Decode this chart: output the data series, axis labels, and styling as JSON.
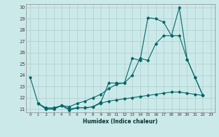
{
  "xlabel": "Humidex (Indice chaleur)",
  "background_color": "#cce9e9",
  "grid_color": "#aacccc",
  "line_color": "#006666",
  "xlim_min": -0.5,
  "xlim_max": 23.5,
  "ylim_min": 20.7,
  "ylim_max": 30.3,
  "xticks": [
    0,
    1,
    2,
    3,
    4,
    5,
    6,
    7,
    8,
    9,
    10,
    11,
    12,
    13,
    14,
    15,
    16,
    17,
    18,
    19,
    20,
    21,
    22,
    23
  ],
  "yticks": [
    21,
    22,
    23,
    24,
    25,
    26,
    27,
    28,
    29,
    30
  ],
  "series1_x": [
    0,
    1,
    2,
    3,
    4,
    5,
    6,
    7,
    8,
    9,
    10,
    11,
    12,
    13,
    14,
    15,
    16,
    17,
    18,
    19,
    20,
    21,
    22
  ],
  "series1_y": [
    23.8,
    21.5,
    21.0,
    21.0,
    21.3,
    20.9,
    21.1,
    21.1,
    21.2,
    21.6,
    23.3,
    23.3,
    23.3,
    25.5,
    25.3,
    29.1,
    29.0,
    28.7,
    27.5,
    30.0,
    25.4,
    23.8,
    22.2
  ],
  "series2_x": [
    1,
    2,
    3,
    4,
    5,
    6,
    7,
    8,
    9,
    10,
    11,
    12,
    13,
    14,
    15,
    16,
    17,
    18,
    19,
    20,
    21,
    22
  ],
  "series2_y": [
    21.5,
    21.0,
    21.0,
    21.3,
    21.2,
    21.5,
    21.7,
    22.0,
    22.3,
    22.8,
    23.2,
    23.3,
    24.0,
    25.5,
    25.3,
    26.8,
    27.5,
    27.5,
    27.5,
    25.4,
    23.8,
    22.2
  ],
  "series3_x": [
    1,
    2,
    3,
    4,
    5,
    6,
    7,
    8,
    9,
    10,
    11,
    12,
    13,
    14,
    15,
    16,
    17,
    18,
    19,
    20,
    21,
    22
  ],
  "series3_y": [
    21.5,
    21.1,
    21.1,
    21.3,
    21.0,
    21.1,
    21.1,
    21.2,
    21.5,
    21.7,
    21.8,
    21.9,
    22.0,
    22.1,
    22.2,
    22.3,
    22.4,
    22.5,
    22.5,
    22.4,
    22.3,
    22.2
  ]
}
